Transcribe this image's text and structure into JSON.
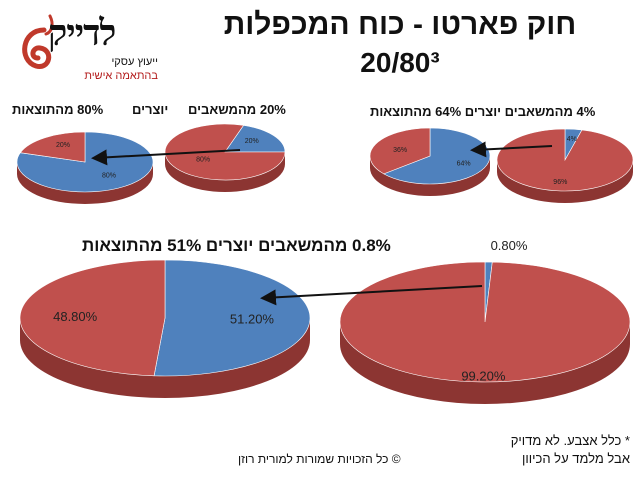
{
  "header": {
    "title_line1": "חוק פארטו - כוח המכפלות",
    "title_line2": "20/80³"
  },
  "logo": {
    "word": "לדייק",
    "tagline1": "ייעוץ עסקי",
    "tagline2": "בהתאמה אישית"
  },
  "captions": {
    "top_left_a": "20% מהמשאבים",
    "top_left_b": "יוצרים",
    "top_left_c": "80% מהתוצאות",
    "top_right": "4% מהמשאבים יוצרים 64% מהתוצאות",
    "middle": "0.8% מהמשאבים יוצרים 51% מהתוצאות"
  },
  "footer": {
    "footnote_line1": "* כלל אצבע. לא מדויק",
    "footnote_line2": "אבל מלמד על הכיוון",
    "copyright": "© כל הזכויות שמורות למורית רוזן"
  },
  "colors": {
    "blue": "#4f81bd",
    "red": "#c0504d",
    "blue_dark": "#385d8a",
    "red_dark": "#8c3532"
  },
  "chart_data": [
    {
      "type": "pie",
      "series": [
        {
          "labels": [
            "20%",
            "80%"
          ],
          "values": [
            20,
            80
          ]
        }
      ]
    },
    {
      "type": "pie",
      "series": [
        {
          "labels": [
            "80%",
            "20%"
          ],
          "values": [
            80,
            20
          ]
        }
      ]
    },
    {
      "type": "pie",
      "series": [
        {
          "labels": [
            "4%",
            "96%"
          ],
          "values": [
            4,
            96
          ]
        }
      ]
    },
    {
      "type": "pie",
      "series": [
        {
          "labels": [
            "64%",
            "36%"
          ],
          "values": [
            64,
            36
          ]
        }
      ]
    },
    {
      "type": "pie",
      "series": [
        {
          "labels": [
            "0.80%",
            "99.20%"
          ],
          "values": [
            0.8,
            99.2
          ]
        }
      ]
    },
    {
      "type": "pie",
      "series": [
        {
          "labels": [
            "51.20%",
            "48.80%"
          ],
          "values": [
            51.2,
            48.8
          ]
        }
      ]
    }
  ]
}
